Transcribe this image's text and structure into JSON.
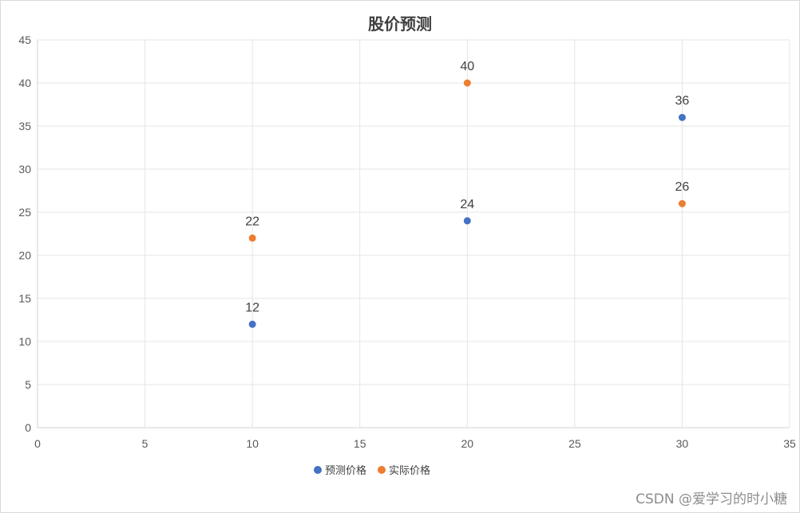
{
  "chart_data": {
    "type": "scatter",
    "title": "股价预测",
    "xlim": [
      0,
      35
    ],
    "ylim": [
      0,
      45
    ],
    "x_ticks": [
      0,
      5,
      10,
      15,
      20,
      25,
      30,
      35
    ],
    "y_ticks": [
      0,
      5,
      10,
      15,
      20,
      25,
      30,
      35,
      40,
      45
    ],
    "grid": true,
    "legend_position": "bottom",
    "series": [
      {
        "name": "预测价格",
        "color": "#4472C4",
        "points": [
          {
            "x": 10,
            "y": 12
          },
          {
            "x": 20,
            "y": 24
          },
          {
            "x": 30,
            "y": 36
          }
        ]
      },
      {
        "name": "实际价格",
        "color": "#ED7D31",
        "points": [
          {
            "x": 10,
            "y": 22
          },
          {
            "x": 20,
            "y": 40
          },
          {
            "x": 30,
            "y": 26
          }
        ]
      }
    ]
  },
  "watermark": "CSDN @爱学习的时小糖"
}
